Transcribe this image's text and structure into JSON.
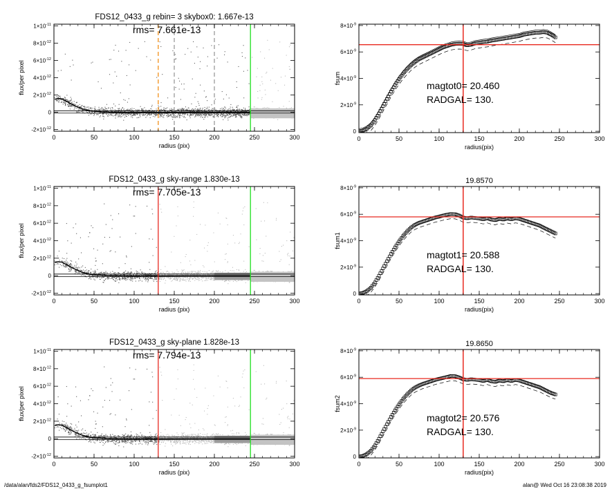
{
  "footer": {
    "left": "/data/alan/fds2/FDS12_0433_g_fsumplot1",
    "right": "alan@  Wed Oct 16 23:08:38 2019"
  },
  "colors": {
    "red": "#e8281e",
    "green": "#1fe01f",
    "orange": "#f39019",
    "gray": "#9a9a9a",
    "lightgray": "#bdbdbd"
  },
  "chart_data": [
    {
      "type": "scatter",
      "title": "FDS12_0433_g rebin= 3   skybox0:  1.667e-13",
      "rms": "rms= 7.661e-13",
      "xlabel": "radius (pix)",
      "ylabel": "flux/per pixel",
      "xlim": [
        0,
        300
      ],
      "ylim": [
        -2.2e-12,
        1.02e-11
      ],
      "xticks": [
        0,
        50,
        100,
        150,
        200,
        250,
        300
      ],
      "yticks": [
        {
          "v": -2e-12,
          "m": "-2×10",
          "e": "-12"
        },
        {
          "v": 0,
          "m": "0",
          "e": ""
        },
        {
          "v": 2e-12,
          "m": "2×10",
          "e": "-12"
        },
        {
          "v": 4e-12,
          "m": "4×10",
          "e": "-12"
        },
        {
          "v": 6e-12,
          "m": "6×10",
          "e": "-12"
        },
        {
          "v": 8e-12,
          "m": "8×10",
          "e": "-12"
        },
        {
          "v": 1e-11,
          "m": "1×10",
          "e": "-11"
        }
      ],
      "vlines": [
        {
          "x": 130,
          "color": "orange",
          "style": "dashed"
        },
        {
          "x": 150,
          "color": "gray",
          "style": "dashed"
        },
        {
          "x": 200,
          "color": "gray",
          "style": "dashed"
        },
        {
          "x": 245,
          "color": "green",
          "style": "solid"
        }
      ],
      "hlines": [
        {
          "y": 1.667e-13
        },
        {
          "y": -1e-13
        }
      ],
      "profile": {
        "x": [
          1,
          5,
          10,
          15,
          20,
          25,
          30,
          35,
          40,
          45,
          50,
          60,
          70,
          80,
          100,
          130,
          160,
          200,
          245
        ],
        "y": [
          1.5e-12,
          1.6e-12,
          1.55e-12,
          1.3e-12,
          1.05e-12,
          8e-13,
          6e-13,
          4e-13,
          2.8e-13,
          1.8e-13,
          1.1e-13,
          5e-14,
          2e-14,
          0,
          -1e-14,
          -1e-14,
          0,
          0,
          0
        ]
      }
    },
    {
      "type": "line",
      "title": "",
      "xlabel": "radius(pix)",
      "ylabel": "fsum",
      "xlim": [
        0,
        300
      ],
      "ylim": [
        -1e-10,
        8.1e-09
      ],
      "xticks": [
        0,
        50,
        100,
        150,
        200,
        250,
        300
      ],
      "yticks": [
        {
          "v": 0,
          "m": "0",
          "e": ""
        },
        {
          "v": 2e-09,
          "m": "2×10",
          "e": "-9"
        },
        {
          "v": 4e-09,
          "m": "4×10",
          "e": "-9"
        },
        {
          "v": 6e-09,
          "m": "6×10",
          "e": "-9"
        },
        {
          "v": 8e-09,
          "m": "8×10",
          "e": "-9"
        }
      ],
      "annot1": "magtot0=  20.460",
      "annot2": "RADGAL=    130.",
      "vline": 130,
      "hline": 6.55e-09,
      "series": {
        "x": [
          0,
          5,
          10,
          15,
          20,
          25,
          30,
          35,
          40,
          45,
          50,
          55,
          60,
          65,
          70,
          75,
          80,
          85,
          90,
          95,
          100,
          105,
          110,
          115,
          120,
          125,
          130,
          135,
          140,
          145,
          150,
          155,
          160,
          165,
          170,
          175,
          180,
          185,
          190,
          195,
          200,
          205,
          210,
          215,
          220,
          225,
          230,
          235,
          240,
          245
        ],
        "y": [
          0,
          0.05,
          0.2,
          0.45,
          0.85,
          1.35,
          1.9,
          2.45,
          3.0,
          3.5,
          3.95,
          4.35,
          4.7,
          5.0,
          5.25,
          5.45,
          5.6,
          5.75,
          5.9,
          6.05,
          6.2,
          6.35,
          6.45,
          6.55,
          6.6,
          6.62,
          6.6,
          6.5,
          6.55,
          6.65,
          6.7,
          6.75,
          6.78,
          6.85,
          6.9,
          6.95,
          7.0,
          7.05,
          7.1,
          7.15,
          7.2,
          7.3,
          7.35,
          7.4,
          7.45,
          7.45,
          7.5,
          7.45,
          7.3,
          7.1
        ]
      },
      "upper_offset": 0.2,
      "lower_offset": -0.4
    },
    {
      "type": "scatter",
      "title": "FDS12_0433_g sky-range  1.830e-13",
      "rms": "rms= 7.705e-13",
      "xlabel": "radius (pix)",
      "ylabel": "flux/per pixel",
      "xlim": [
        0,
        300
      ],
      "ylim": [
        -2.2e-12,
        1.02e-11
      ],
      "xticks": [
        0,
        50,
        100,
        150,
        200,
        250,
        300
      ],
      "yticks": [
        {
          "v": -2e-12,
          "m": "-2×10",
          "e": "-12"
        },
        {
          "v": 0,
          "m": "0",
          "e": ""
        },
        {
          "v": 2e-12,
          "m": "2×10",
          "e": "-12"
        },
        {
          "v": 4e-12,
          "m": "4×10",
          "e": "-12"
        },
        {
          "v": 6e-12,
          "m": "6×10",
          "e": "-12"
        },
        {
          "v": 8e-12,
          "m": "8×10",
          "e": "-12"
        },
        {
          "v": 1e-11,
          "m": "1×10",
          "e": "-11"
        }
      ],
      "vlines": [
        {
          "x": 130,
          "color": "red",
          "style": "solid"
        },
        {
          "x": 245,
          "color": "green",
          "style": "solid"
        }
      ],
      "hlines": [
        {
          "y": 1.83e-13
        },
        {
          "y": -1e-13
        }
      ],
      "profile": {
        "x": [
          1,
          5,
          10,
          15,
          20,
          25,
          30,
          35,
          40,
          45,
          50,
          60,
          70,
          80,
          100,
          130,
          160,
          200,
          245
        ],
        "y": [
          1.5e-12,
          1.6e-12,
          1.55e-12,
          1.3e-12,
          1.05e-12,
          8e-13,
          6e-13,
          4e-13,
          2.8e-13,
          1.8e-13,
          1.1e-13,
          5e-14,
          2e-14,
          0,
          -1e-14,
          -1e-14,
          0,
          0,
          0
        ]
      }
    },
    {
      "type": "line",
      "title": "19.8570",
      "xlabel": "radius(pix)",
      "ylabel": "fsum1",
      "xlim": [
        0,
        300
      ],
      "ylim": [
        -1e-10,
        8.1e-09
      ],
      "xticks": [
        0,
        50,
        100,
        150,
        200,
        250,
        300
      ],
      "yticks": [
        {
          "v": 0,
          "m": "0",
          "e": ""
        },
        {
          "v": 2e-09,
          "m": "2×10",
          "e": "-9"
        },
        {
          "v": 4e-09,
          "m": "4×10",
          "e": "-9"
        },
        {
          "v": 6e-09,
          "m": "6×10",
          "e": "-9"
        },
        {
          "v": 8e-09,
          "m": "8×10",
          "e": "-9"
        }
      ],
      "annot1": "magtot1=  20.588",
      "annot2": "RADGAL=    130.",
      "vline": 130,
      "hline": 5.8e-09,
      "series": {
        "x": [
          0,
          5,
          10,
          15,
          20,
          25,
          30,
          35,
          40,
          45,
          50,
          55,
          60,
          65,
          70,
          75,
          80,
          85,
          90,
          95,
          100,
          105,
          110,
          115,
          120,
          125,
          130,
          135,
          140,
          145,
          150,
          155,
          160,
          165,
          170,
          175,
          180,
          185,
          190,
          195,
          200,
          205,
          210,
          215,
          220,
          225,
          230,
          235,
          240,
          245
        ],
        "y": [
          0,
          0.05,
          0.2,
          0.45,
          0.85,
          1.35,
          1.9,
          2.45,
          3.0,
          3.5,
          3.95,
          4.35,
          4.7,
          5.0,
          5.2,
          5.35,
          5.45,
          5.55,
          5.65,
          5.75,
          5.82,
          5.9,
          5.97,
          6.02,
          6.0,
          5.9,
          5.75,
          5.7,
          5.75,
          5.72,
          5.68,
          5.62,
          5.7,
          5.6,
          5.55,
          5.65,
          5.6,
          5.68,
          5.62,
          5.7,
          5.65,
          5.55,
          5.45,
          5.35,
          5.25,
          5.15,
          5.0,
          4.85,
          4.7,
          4.55
        ]
      },
      "upper_offset": 0.0,
      "lower_offset": -0.35
    },
    {
      "type": "scatter",
      "title": "FDS12_0433_g sky-plane  1.828e-13",
      "rms": "rms= 7.794e-13",
      "xlabel": "radius (pix)",
      "ylabel": "flux/per pixel",
      "xlim": [
        0,
        300
      ],
      "ylim": [
        -2.2e-12,
        1.02e-11
      ],
      "xticks": [
        0,
        50,
        100,
        150,
        200,
        250,
        300
      ],
      "yticks": [
        {
          "v": -2e-12,
          "m": "-2×10",
          "e": "-12"
        },
        {
          "v": 0,
          "m": "0",
          "e": ""
        },
        {
          "v": 2e-12,
          "m": "2×10",
          "e": "-12"
        },
        {
          "v": 4e-12,
          "m": "4×10",
          "e": "-12"
        },
        {
          "v": 6e-12,
          "m": "6×10",
          "e": "-12"
        },
        {
          "v": 8e-12,
          "m": "8×10",
          "e": "-12"
        },
        {
          "v": 1e-11,
          "m": "1×10",
          "e": "-11"
        }
      ],
      "vlines": [
        {
          "x": 130,
          "color": "red",
          "style": "solid"
        },
        {
          "x": 245,
          "color": "green",
          "style": "solid"
        }
      ],
      "hlines": [
        {
          "y": 1.828e-13
        },
        {
          "y": -1e-13
        }
      ],
      "profile": {
        "x": [
          1,
          5,
          10,
          15,
          20,
          25,
          30,
          35,
          40,
          45,
          50,
          60,
          70,
          80,
          100,
          130,
          160,
          200,
          245
        ],
        "y": [
          1.5e-12,
          1.6e-12,
          1.55e-12,
          1.3e-12,
          1.05e-12,
          8e-13,
          6e-13,
          4e-13,
          2.8e-13,
          1.8e-13,
          1.1e-13,
          5e-14,
          2e-14,
          0,
          -1e-14,
          -1e-14,
          0,
          0,
          0
        ]
      }
    },
    {
      "type": "line",
      "title": "19.8650",
      "xlabel": "radius(pix)",
      "ylabel": "fsum2",
      "xlim": [
        0,
        300
      ],
      "ylim": [
        -1e-10,
        8.1e-09
      ],
      "xticks": [
        0,
        50,
        100,
        150,
        200,
        250,
        300
      ],
      "yticks": [
        {
          "v": 0,
          "m": "0",
          "e": ""
        },
        {
          "v": 2e-09,
          "m": "2×10",
          "e": "-9"
        },
        {
          "v": 4e-09,
          "m": "4×10",
          "e": "-9"
        },
        {
          "v": 6e-09,
          "m": "6×10",
          "e": "-9"
        },
        {
          "v": 8e-09,
          "m": "8×10",
          "e": "-9"
        }
      ],
      "annot1": "magtot2=  20.576",
      "annot2": "RADGAL=    130.",
      "vline": 130,
      "hline": 5.9e-09,
      "series": {
        "x": [
          0,
          5,
          10,
          15,
          20,
          25,
          30,
          35,
          40,
          45,
          50,
          55,
          60,
          65,
          70,
          75,
          80,
          85,
          90,
          95,
          100,
          105,
          110,
          115,
          120,
          125,
          130,
          135,
          140,
          145,
          150,
          155,
          160,
          165,
          170,
          175,
          180,
          185,
          190,
          195,
          200,
          205,
          210,
          215,
          220,
          225,
          230,
          235,
          240,
          245
        ],
        "y": [
          0,
          0.05,
          0.2,
          0.45,
          0.85,
          1.35,
          1.9,
          2.45,
          3.0,
          3.5,
          3.95,
          4.35,
          4.7,
          5.0,
          5.22,
          5.38,
          5.5,
          5.6,
          5.7,
          5.8,
          5.88,
          5.95,
          6.02,
          6.1,
          6.08,
          5.98,
          5.85,
          5.8,
          5.85,
          5.82,
          5.78,
          5.72,
          5.8,
          5.7,
          5.65,
          5.75,
          5.7,
          5.78,
          5.72,
          5.8,
          5.75,
          5.65,
          5.55,
          5.45,
          5.35,
          5.25,
          5.1,
          4.95,
          4.8,
          4.7
        ]
      },
      "upper_offset": 0.0,
      "lower_offset": -0.35
    }
  ]
}
